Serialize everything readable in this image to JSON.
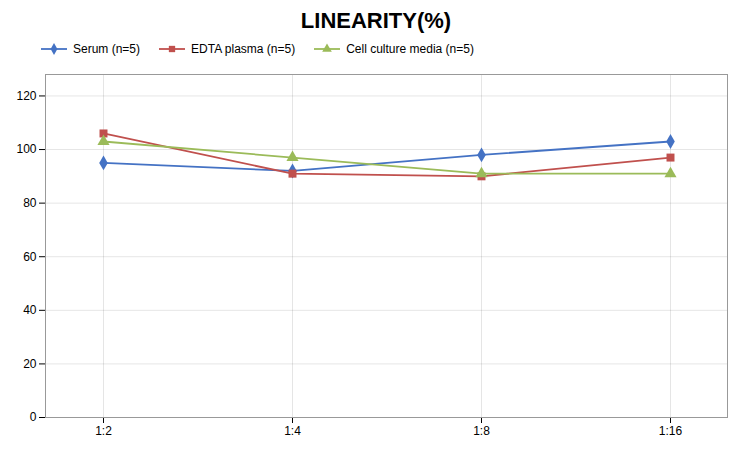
{
  "chart_data": {
    "type": "line",
    "title": "LINEARITY(%)",
    "categories": [
      "1:2",
      "1:4",
      "1:8",
      "1:16"
    ],
    "series": [
      {
        "name": "Serum (n=5)",
        "color": "#4472C4",
        "marker": "diamond",
        "values": [
          95,
          92,
          98,
          103
        ]
      },
      {
        "name": "EDTA plasma (n=5)",
        "color": "#C0504D",
        "marker": "square",
        "values": [
          106,
          91,
          90,
          97
        ]
      },
      {
        "name": "Cell culture media (n=5)",
        "color": "#9BBB59",
        "marker": "triangle",
        "values": [
          103,
          97,
          91,
          91
        ]
      }
    ],
    "ylim": [
      0,
      128
    ],
    "yticks": [
      0,
      20,
      40,
      60,
      80,
      100,
      120
    ],
    "grid": true,
    "legend": "upper left"
  }
}
